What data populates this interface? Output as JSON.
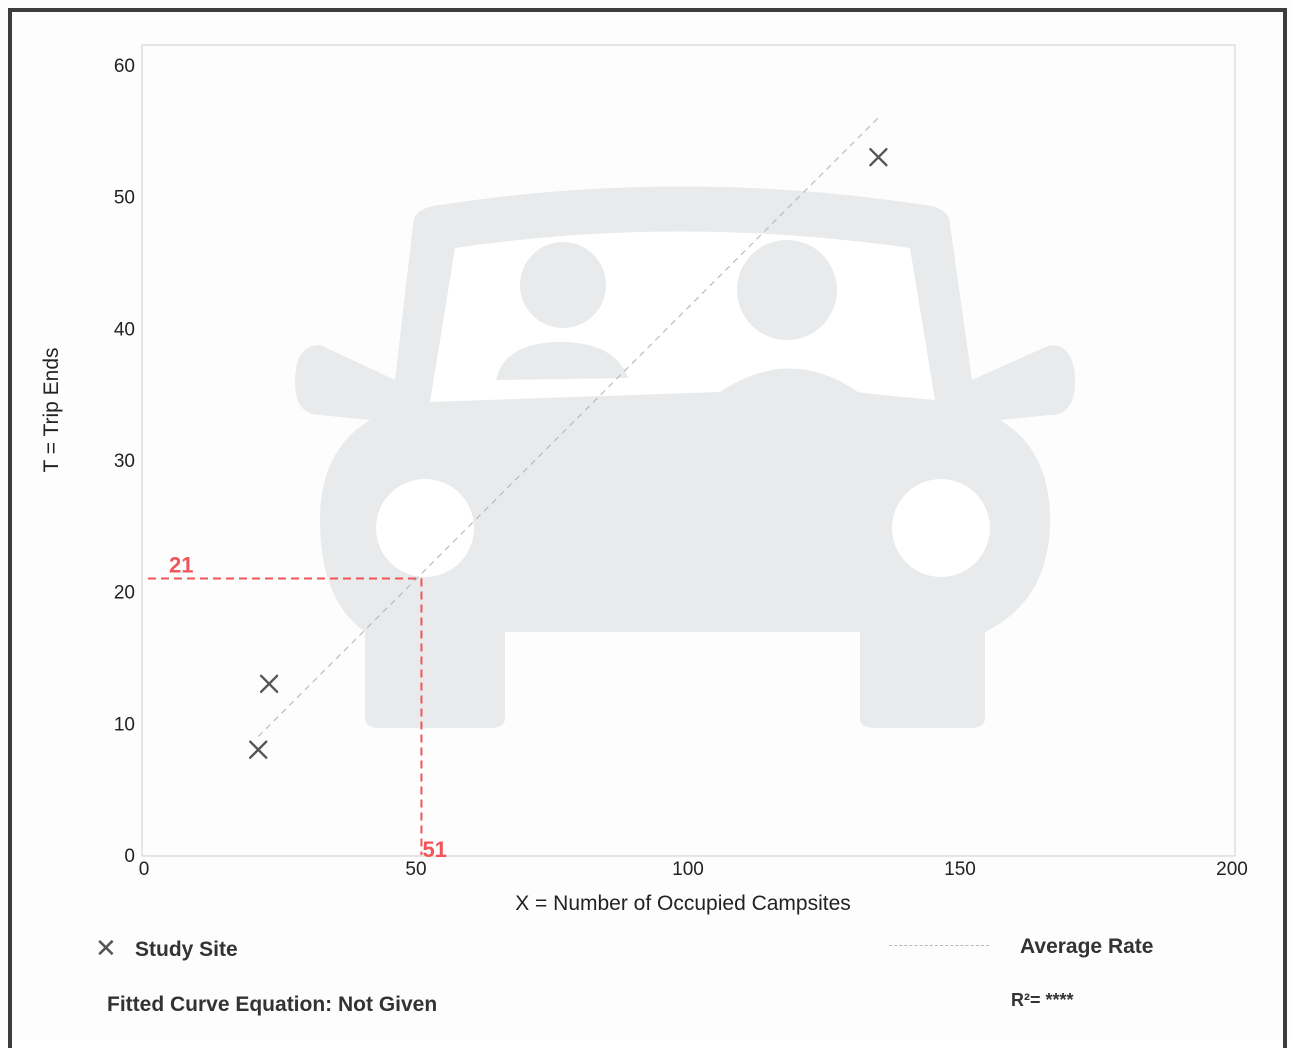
{
  "chart_data": {
    "type": "scatter",
    "xlabel": "X = Number of Occupied Campsites",
    "ylabel": "T = Trip Ends",
    "xlim": [
      0,
      200
    ],
    "ylim": [
      0,
      60
    ],
    "xticks": [
      {
        "value": 0,
        "label": "0"
      },
      {
        "value": 50,
        "label": "50"
      },
      {
        "value": 100,
        "label": "100"
      },
      {
        "value": 150,
        "label": "150"
      },
      {
        "value": 200,
        "label": "200"
      }
    ],
    "yticks": [
      {
        "value": 0,
        "label": "0"
      },
      {
        "value": 10,
        "label": "10"
      },
      {
        "value": 20,
        "label": "20"
      },
      {
        "value": 30,
        "label": "30"
      },
      {
        "value": 40,
        "label": "40"
      },
      {
        "value": 50,
        "label": "50"
      },
      {
        "value": 60,
        "label": "60"
      }
    ],
    "grid": false,
    "series": [
      {
        "name": "Study Site",
        "marker": "x",
        "color": "#555555",
        "points": [
          {
            "x": 21,
            "y": 8
          },
          {
            "x": 23,
            "y": 13
          },
          {
            "x": 135,
            "y": 53
          }
        ]
      }
    ],
    "average_rate_line": {
      "name": "Average Rate",
      "color": "#bbbbbb",
      "style": "dashed",
      "from": {
        "x": 21,
        "y": 9
      },
      "to": {
        "x": 135,
        "y": 56
      }
    },
    "reference": {
      "x": 51,
      "y": 21,
      "x_label": "51",
      "y_label": "21",
      "color": "#f0555a"
    },
    "background_icon": "car-with-two-passengers-icon",
    "legend": {
      "placement": "bottom",
      "study_site_label": "Study Site",
      "average_rate_label": "Average Rate"
    },
    "fitted_curve_text": "Fitted Curve Equation: Not Given",
    "r_squared_text": "R²= ****"
  }
}
